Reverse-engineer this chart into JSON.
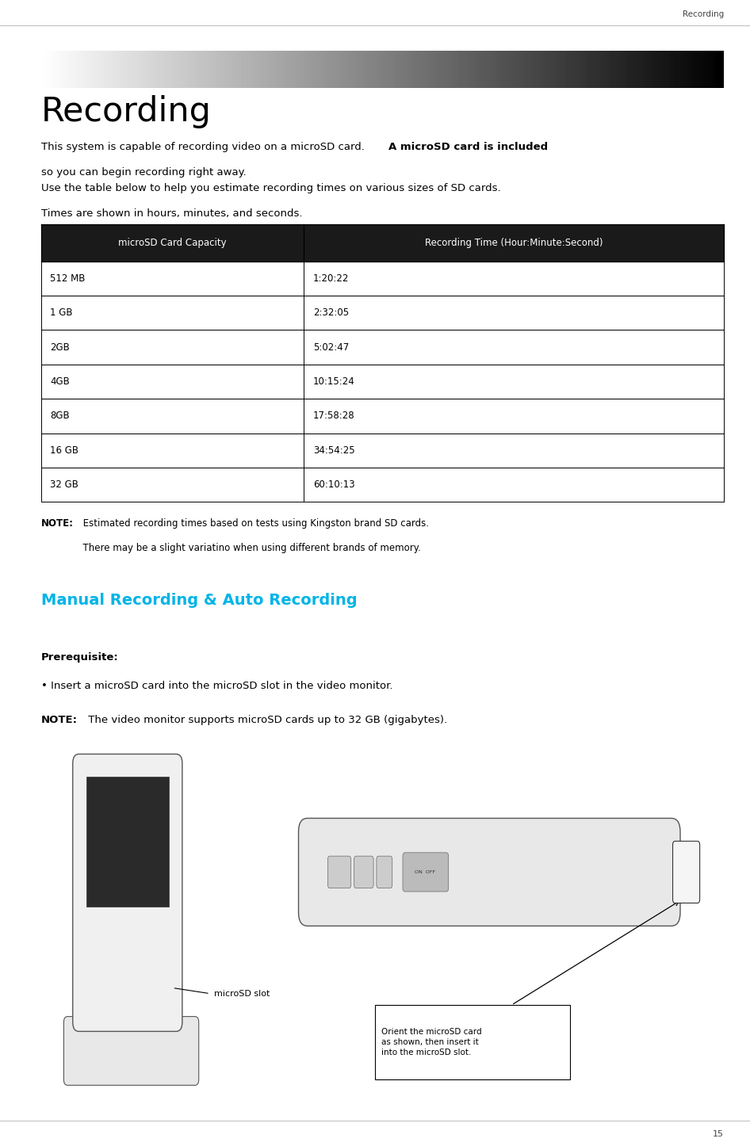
{
  "page_title_top_right": "Recording",
  "page_number": "15",
  "section_title": "Recording",
  "intro_text_normal": "This system is capable of recording video on a microSD card. ",
  "intro_text_bold": "A microSD card is included",
  "intro_text2": "so you can begin recording right away.",
  "para2_line1": "Use the table below to help you estimate recording times on various sizes of SD cards.",
  "para2_line2": "Times are shown in hours, minutes, and seconds.",
  "table_header": [
    "microSD Card Capacity",
    "Recording Time (Hour:Minute:Second)"
  ],
  "table_rows": [
    [
      "512 MB",
      "1:20:22"
    ],
    [
      "1 GB",
      "2:32:05"
    ],
    [
      "2GB",
      "5:02:47"
    ],
    [
      "4GB",
      "10:15:24"
    ],
    [
      "8GB",
      "17:58:28"
    ],
    [
      "16 GB",
      "34:54:25"
    ],
    [
      "32 GB",
      "60:10:13"
    ]
  ],
  "note_bold": "NOTE:",
  "note_text_1": " Estimated recording times based on tests using Kingston brand SD cards.",
  "note_text_2": "              There may be a slight variatino when using different brands of memory.",
  "section2_title": "Manual Recording & Auto Recording",
  "prereq_bold": "Prerequisite:",
  "prereq_bullet": "• Insert a microSD card into the microSD slot in the video monitor.",
  "note2_bold": "NOTE:",
  "note2_text": " The video monitor supports microSD cards up to 32 GB (gigabytes).",
  "microsd_slot_label": "microSD slot",
  "orient_text": "Orient the microSD card\nas shown, then insert it\ninto the microSD slot.",
  "header_bg": "#1a1a1a",
  "header_fg": "#ffffff",
  "table_border": "#000000",
  "section2_color": "#00b4e6",
  "bg_color": "#ffffff",
  "lm": 0.055,
  "rm": 0.965
}
